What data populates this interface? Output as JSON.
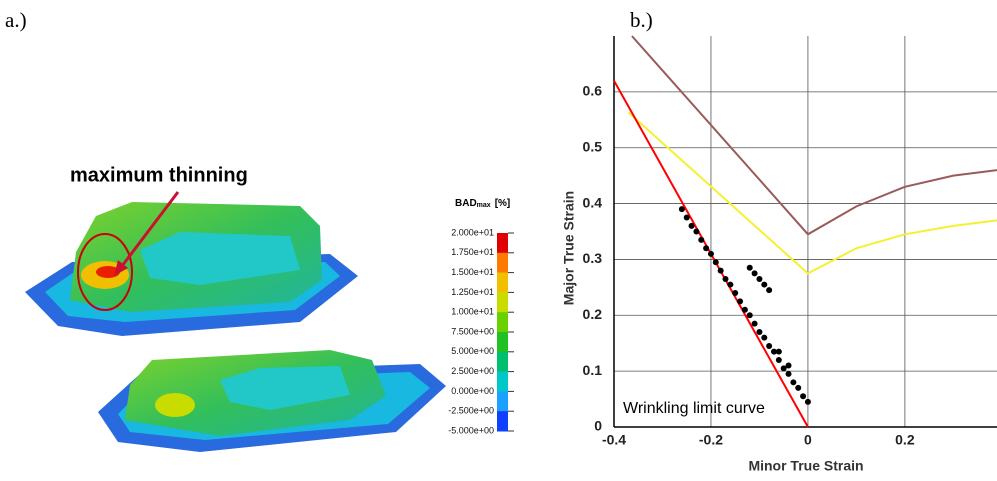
{
  "panel_a": {
    "label": "a.)",
    "annotation": "maximum thinning",
    "colorbar": {
      "title_main": "BAD",
      "title_sub": "max",
      "title_unit": "[%]",
      "ticks": [
        "2.000e+01",
        "1.750e+01",
        "1.500e+01",
        "1.250e+01",
        "1.000e+01",
        "7.500e+00",
        "5.000e+00",
        "2.500e+00",
        "0.000e+00",
        "-2.500e+00",
        "-5.000e+00"
      ],
      "colors": [
        "#e00000",
        "#ff7a00",
        "#f0c000",
        "#c8dc00",
        "#6ad000",
        "#22c022",
        "#00c070",
        "#00c8c8",
        "#1aa0ff",
        "#1040ff"
      ]
    }
  },
  "chart_data": {
    "type": "line",
    "title": "b.)",
    "x_label": "Minor True Strain",
    "y_label": "Major True Strain",
    "annotation": "Wrinkling limit curve",
    "xlim": [
      -0.4,
      0.39
    ],
    "ylim": [
      0,
      0.7
    ],
    "xticks": [
      -0.4,
      -0.2,
      0,
      0.2
    ],
    "yticks": [
      0,
      0.1,
      0.2,
      0.3,
      0.4,
      0.5,
      0.6
    ],
    "grid": true,
    "series": [
      {
        "type": "line",
        "color": "#9a5a5a",
        "x": [
          -0.363,
          0,
          0.1,
          0.2,
          0.3,
          0.39
        ],
        "values": [
          0.7,
          0.345,
          0.395,
          0.43,
          0.45,
          0.46
        ]
      },
      {
        "type": "line",
        "color": "#f5f032",
        "x": [
          -0.37,
          0,
          0.1,
          0.2,
          0.3,
          0.39
        ],
        "values": [
          0.563,
          0.275,
          0.32,
          0.345,
          0.36,
          0.37
        ]
      },
      {
        "type": "line",
        "color": "#ff0000",
        "x": [
          -0.4,
          0
        ],
        "values": [
          0.62,
          0
        ]
      },
      {
        "type": "scatter",
        "color": "#000000",
        "x": [
          -0.26,
          -0.25,
          -0.24,
          -0.23,
          -0.22,
          -0.21,
          -0.2,
          -0.19,
          -0.18,
          -0.17,
          -0.16,
          -0.15,
          -0.14,
          -0.13,
          -0.12,
          -0.11,
          -0.1,
          -0.09,
          -0.08,
          -0.07,
          -0.06,
          -0.05,
          -0.04,
          -0.03,
          -0.02,
          -0.01,
          0,
          -0.12,
          -0.11,
          -0.1,
          -0.09,
          -0.08,
          -0.06,
          -0.04
        ],
        "values": [
          0.39,
          0.375,
          0.36,
          0.35,
          0.335,
          0.32,
          0.31,
          0.295,
          0.28,
          0.265,
          0.255,
          0.24,
          0.225,
          0.21,
          0.2,
          0.185,
          0.17,
          0.16,
          0.145,
          0.135,
          0.12,
          0.105,
          0.095,
          0.08,
          0.07,
          0.055,
          0.045,
          0.285,
          0.275,
          0.265,
          0.255,
          0.245,
          0.135,
          0.11
        ]
      }
    ]
  }
}
